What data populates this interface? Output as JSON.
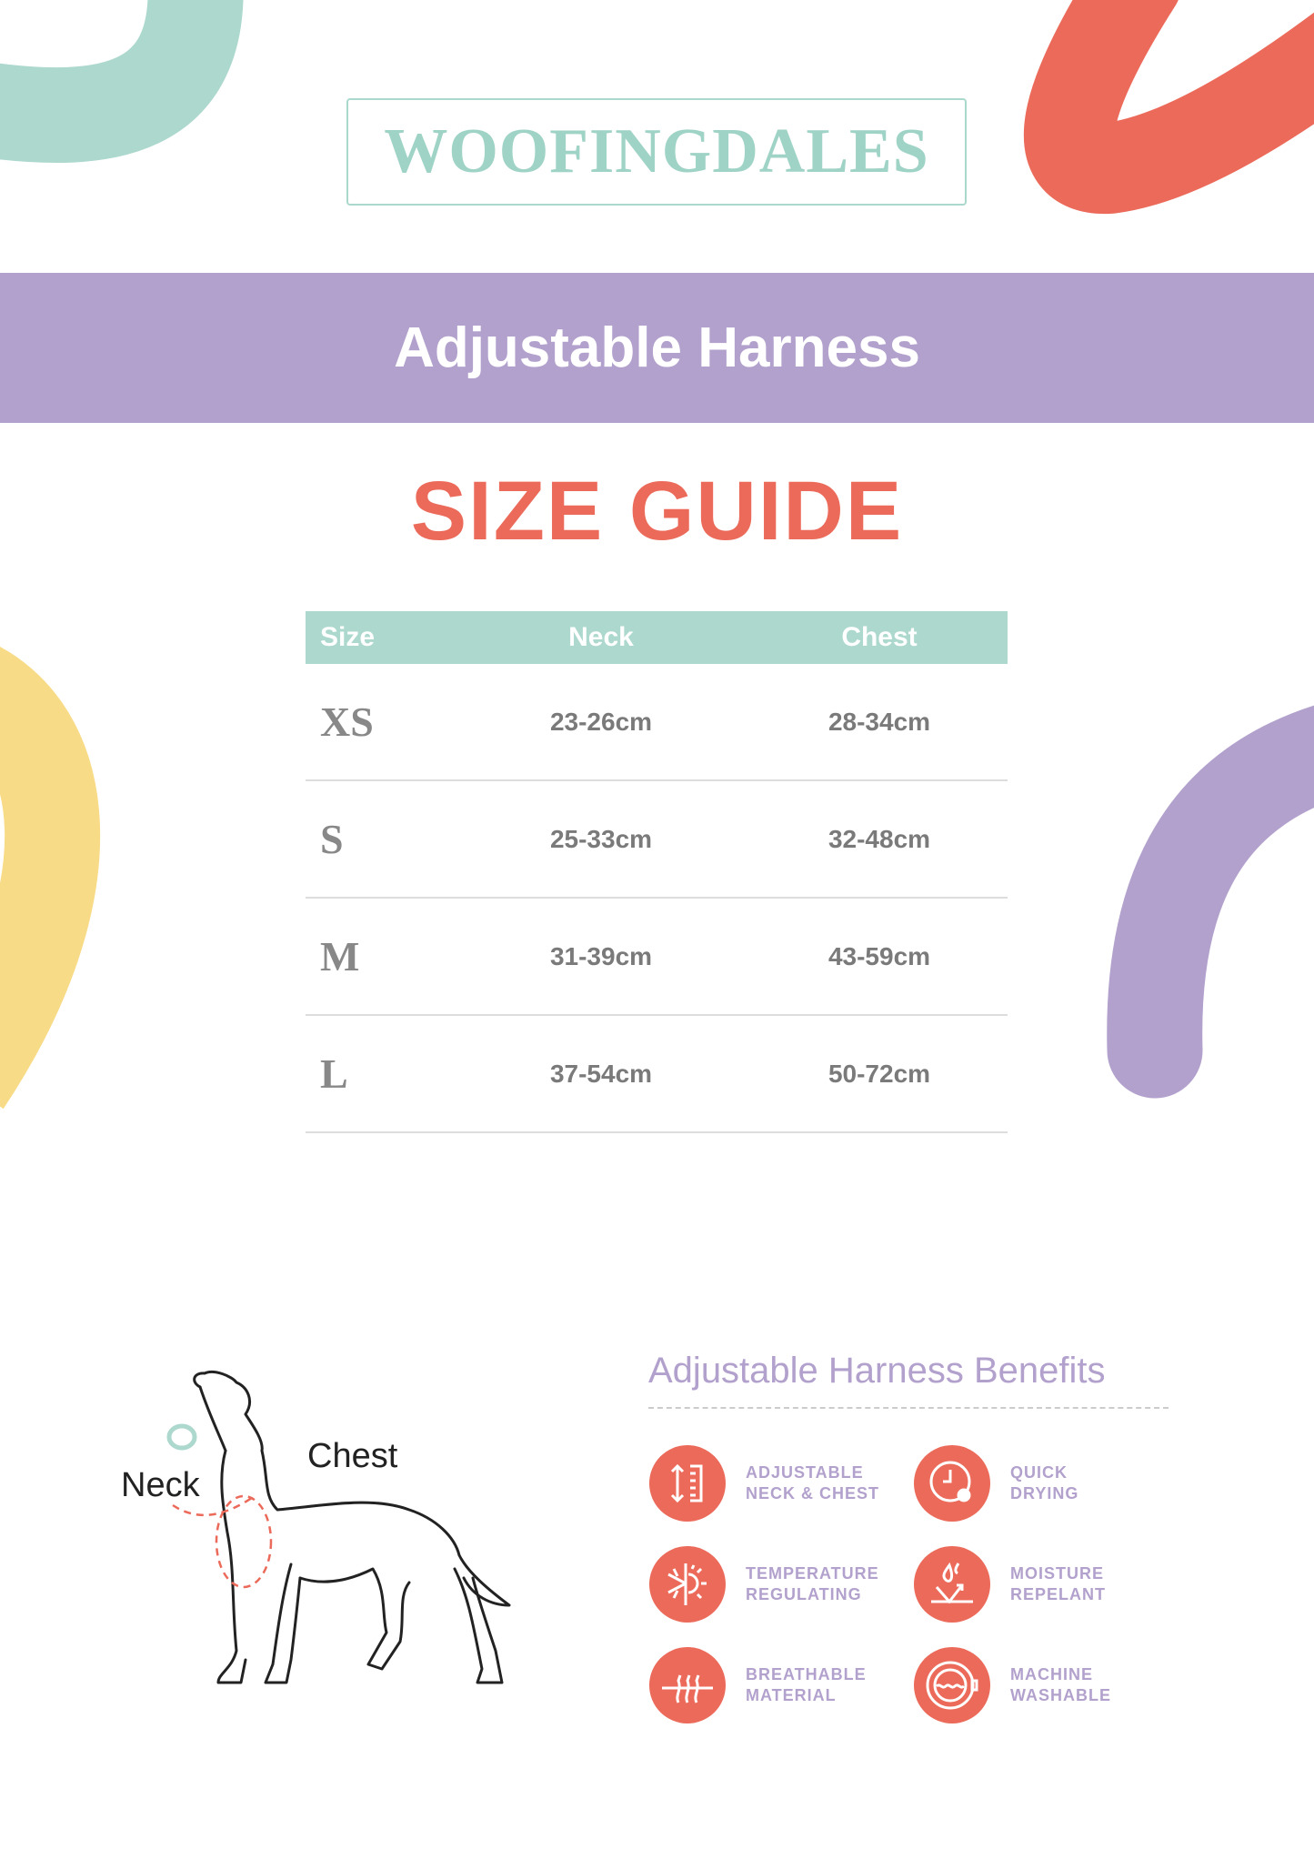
{
  "brand": {
    "logo_text": "WOOFINGDALES"
  },
  "product": {
    "title": "Adjustable Harness"
  },
  "heading": "SIZE GUIDE",
  "colors": {
    "teal": "#acd8cd",
    "coral": "#ec6a5a",
    "lavender": "#b2a1cd",
    "yellow": "#f8db86"
  },
  "table": {
    "headers": [
      "Size",
      "Neck",
      "Chest"
    ],
    "rows": [
      {
        "size": "XS",
        "neck": "23-26cm",
        "chest": "28-34cm"
      },
      {
        "size": "S",
        "neck": "25-33cm",
        "chest": "32-48cm"
      },
      {
        "size": "M",
        "neck": "31-39cm",
        "chest": "43-59cm"
      },
      {
        "size": "L",
        "neck": "37-54cm",
        "chest": "50-72cm"
      }
    ]
  },
  "diagram": {
    "neck_label": "Neck",
    "chest_label": "Chest"
  },
  "benefits": {
    "title": "Adjustable Harness Benefits",
    "items": [
      {
        "line1": "ADJUSTABLE",
        "line2": "NECK & CHEST",
        "icon": "ruler-arrows-icon"
      },
      {
        "line1": "QUICK",
        "line2": "DRYING",
        "icon": "clock-drop-icon"
      },
      {
        "line1": "TEMPERATURE",
        "line2": "REGULATING",
        "icon": "snowflake-sun-icon"
      },
      {
        "line1": "MOISTURE",
        "line2": "REPELANT",
        "icon": "water-repel-icon"
      },
      {
        "line1": "BREATHABLE",
        "line2": "MATERIAL",
        "icon": "air-flow-icon"
      },
      {
        "line1": "MACHINE",
        "line2": "WASHABLE",
        "icon": "washing-machine-icon"
      }
    ]
  }
}
